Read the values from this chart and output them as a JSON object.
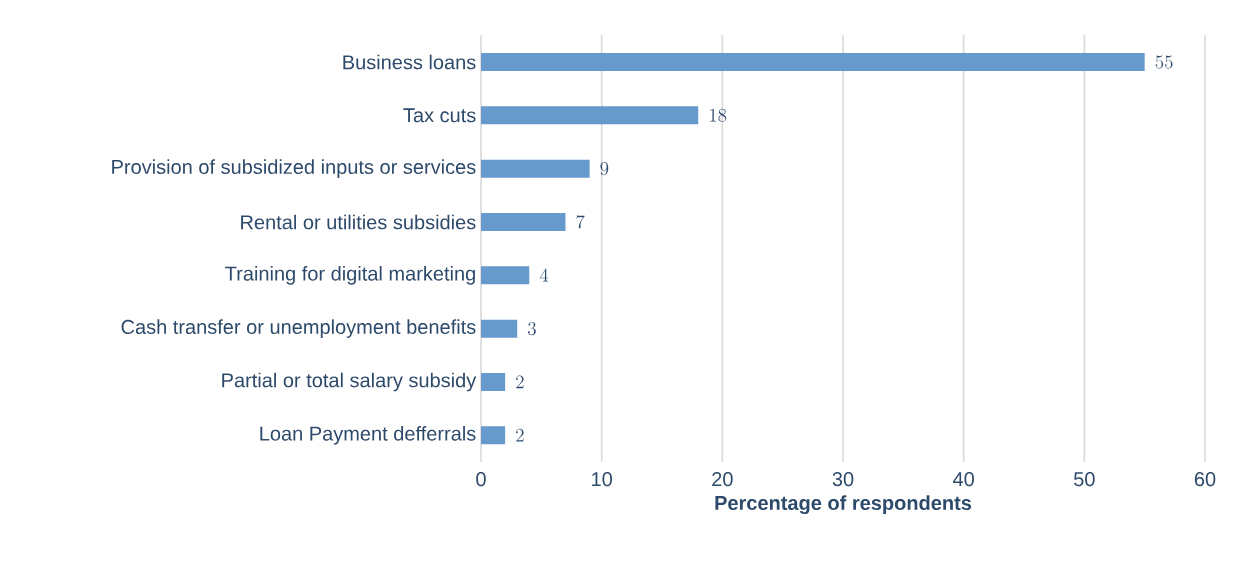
{
  "chart_data": {
    "type": "bar",
    "orientation": "horizontal",
    "xlabel": "Percentage of respondents",
    "categories": [
      "Business loans",
      "Tax cuts",
      "Provision of subsidized inputs or services",
      "Rental or utilities subsidies",
      "Training for digital marketing",
      "Cash transfer or unemployment benefits",
      "Partial or total salary subsidy",
      "Loan Payment defferrals"
    ],
    "values": [
      55,
      18,
      9,
      7,
      4,
      3,
      2,
      2
    ],
    "color": "#6699cc",
    "xlim": [
      0,
      60
    ],
    "xticks": [
      0,
      10,
      20,
      30,
      40,
      50,
      60
    ],
    "grid": "x",
    "data_labels": true
  }
}
